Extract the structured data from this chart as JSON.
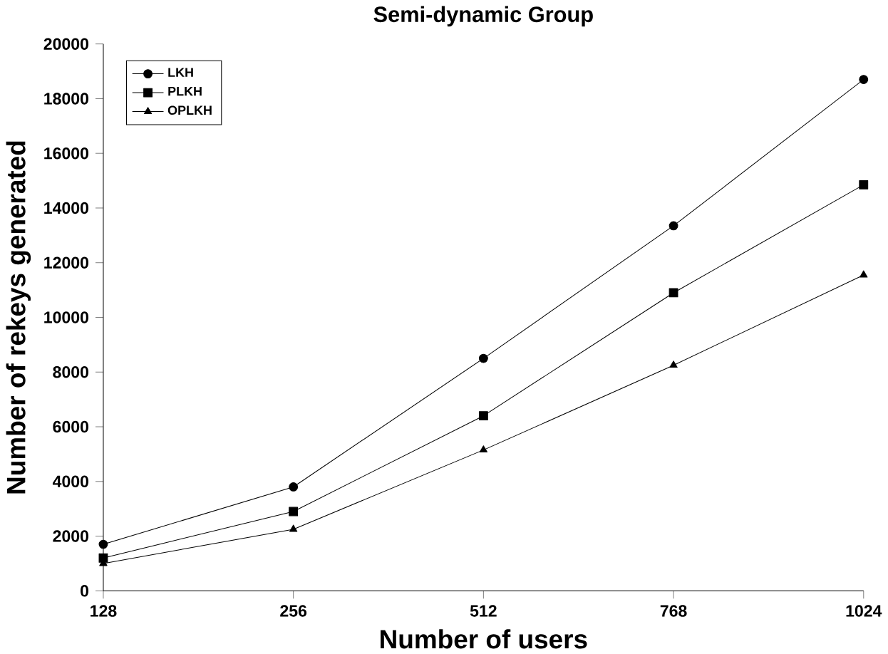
{
  "chart_data": {
    "type": "line",
    "title": "Semi-dynamic Group",
    "xlabel": "Number of users",
    "ylabel": "Number of rekeys generated",
    "categories": [
      "128",
      "256",
      "512",
      "768",
      "1024"
    ],
    "series": [
      {
        "name": "LKH",
        "color": "#000000",
        "marker": "circle",
        "values": [
          1700,
          3800,
          8500,
          13350,
          18700
        ]
      },
      {
        "name": "PLKH",
        "color": "#000000",
        "marker": "square",
        "values": [
          1200,
          2900,
          6400,
          10900,
          14850
        ]
      },
      {
        "name": "OPLKH",
        "color": "#000000",
        "marker": "triangle",
        "values": [
          1000,
          2250,
          5150,
          8250,
          11550
        ]
      }
    ],
    "ylim": [
      0,
      20000
    ],
    "yticks": [
      0,
      2000,
      4000,
      6000,
      8000,
      10000,
      12000,
      14000,
      16000,
      18000,
      20000
    ],
    "legend": "top left",
    "grid": false,
    "line_style": "solid"
  }
}
